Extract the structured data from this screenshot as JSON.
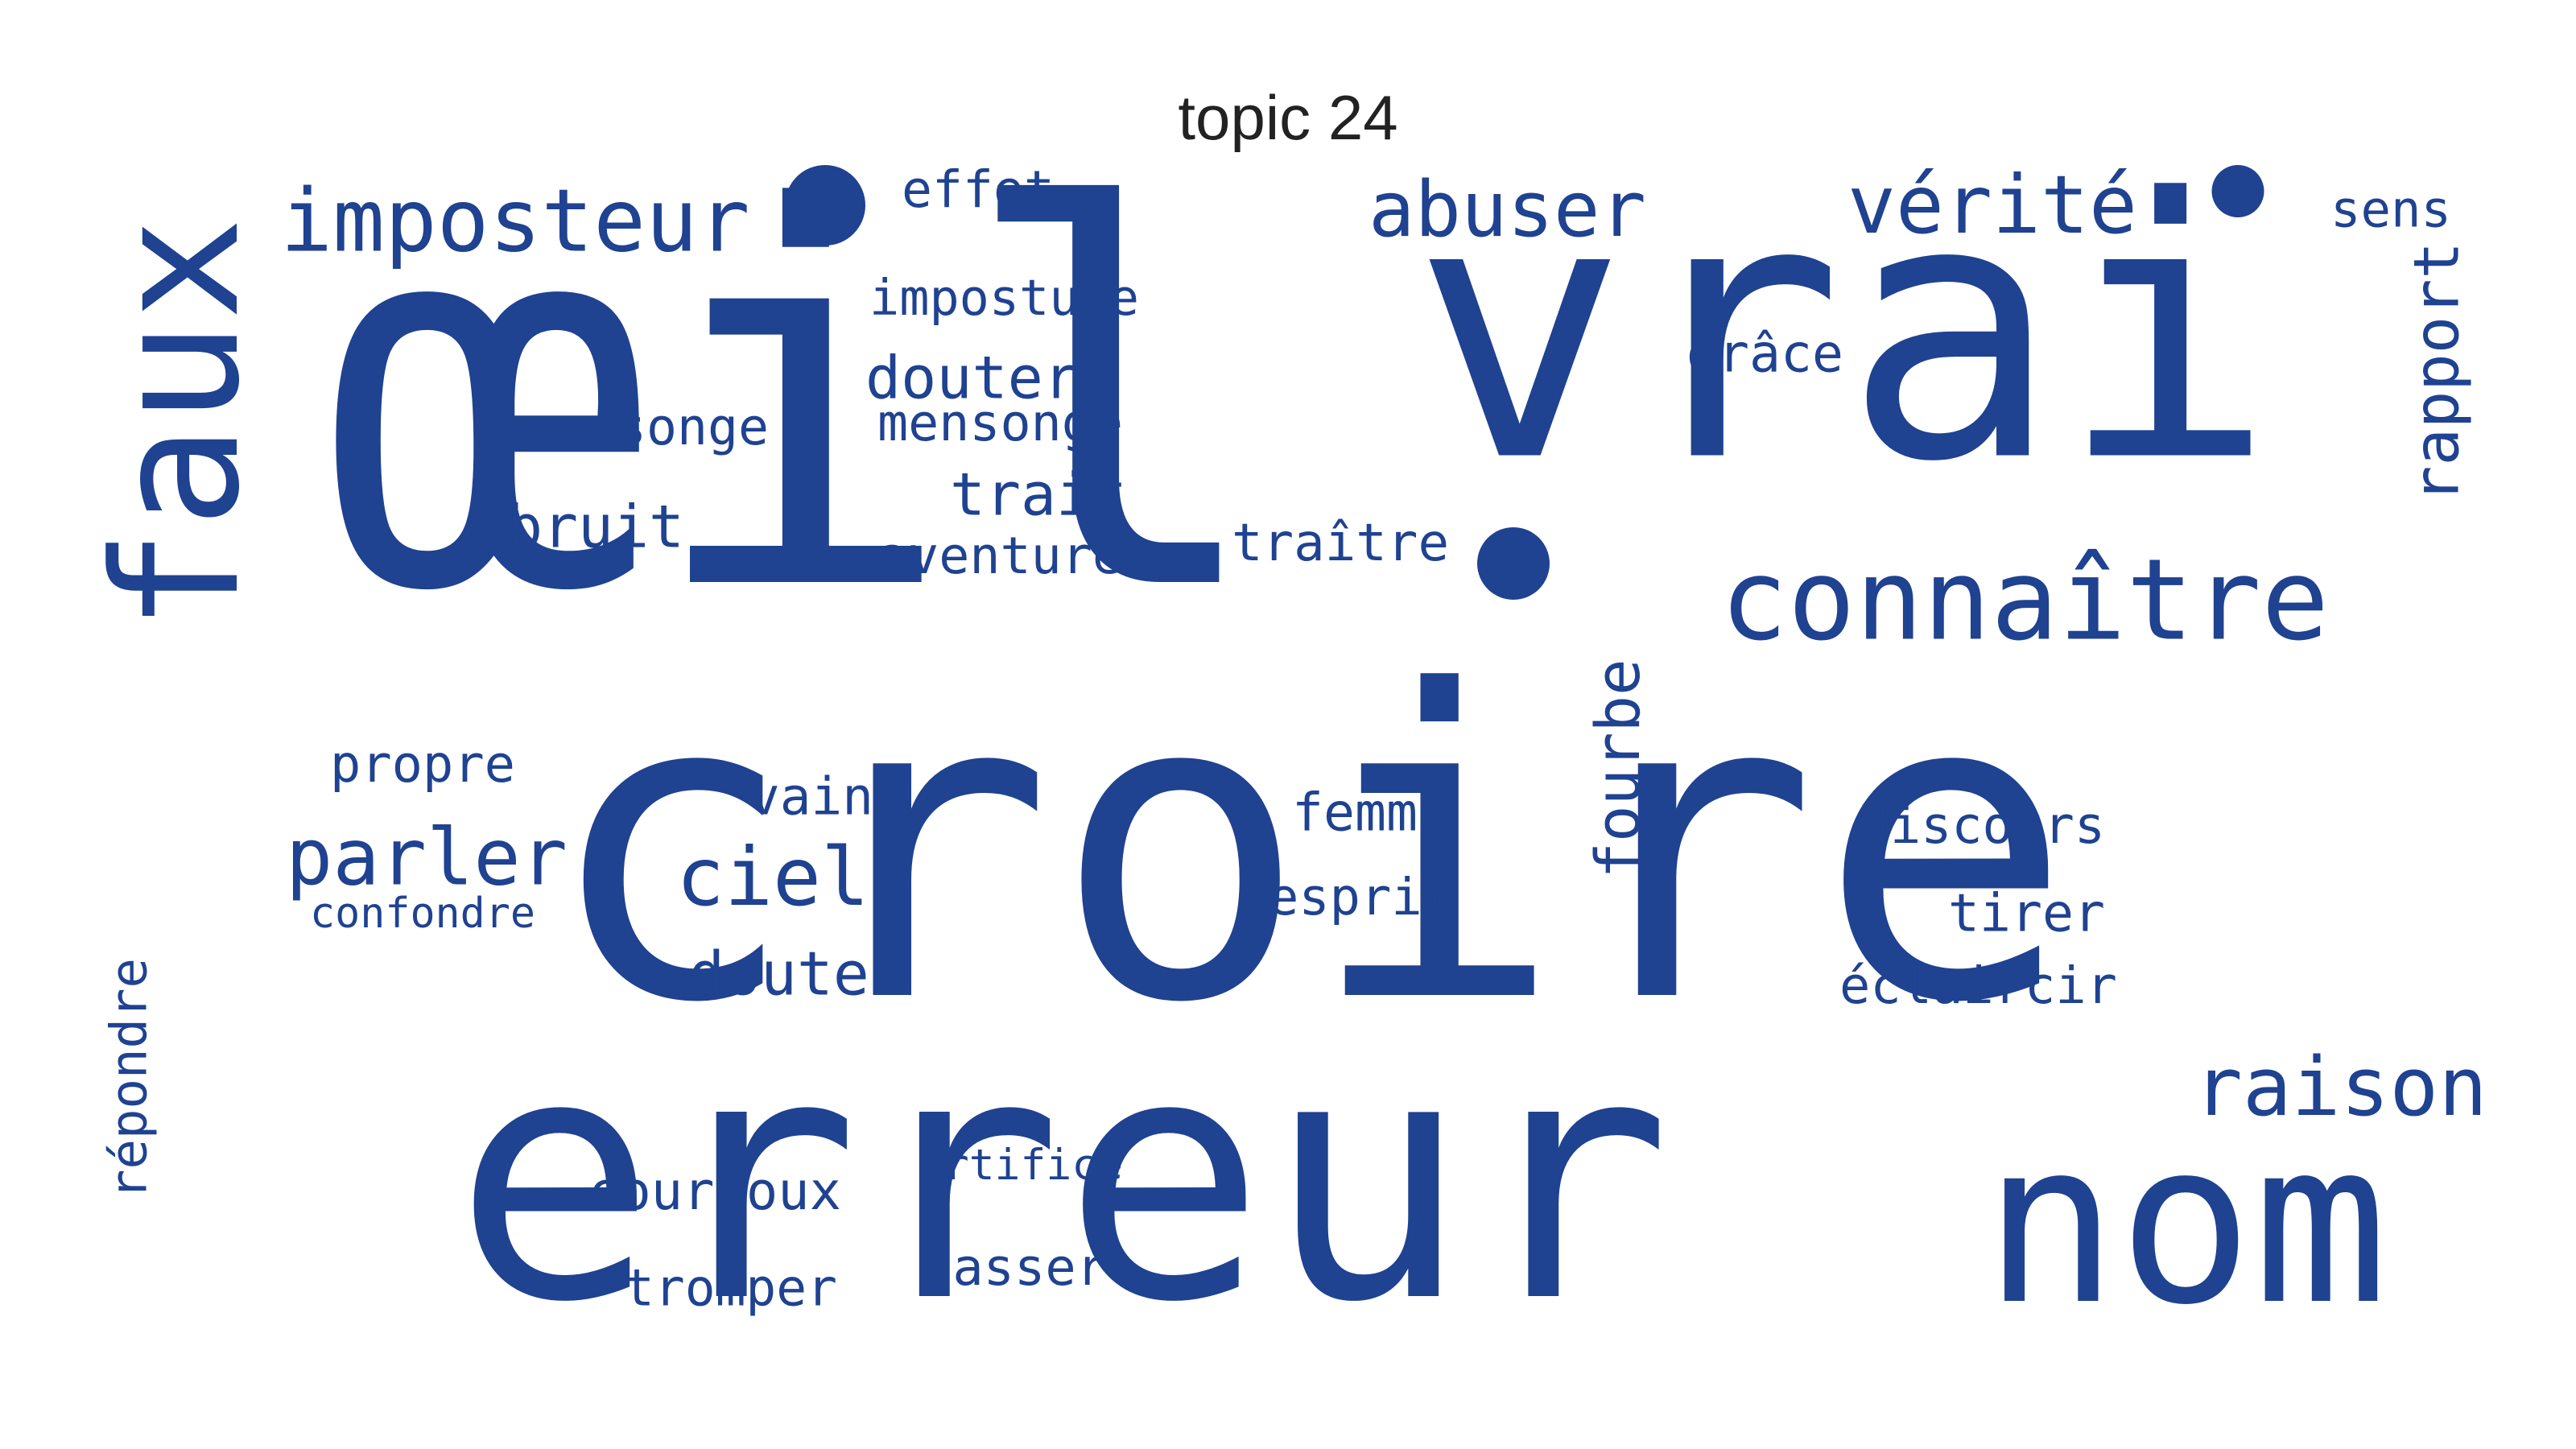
{
  "title": "topic 24",
  "color": "#1f4291",
  "words": [
    {
      "text": "croire"
    },
    {
      "text": "erreur"
    },
    {
      "text": "œil"
    },
    {
      "text": "vrai"
    },
    {
      "text": "nom"
    },
    {
      "text": "connaître"
    },
    {
      "text": "faux"
    },
    {
      "text": "imposteur"
    },
    {
      "text": "abuser"
    },
    {
      "text": "vérité"
    },
    {
      "text": "raison"
    },
    {
      "text": "parler"
    },
    {
      "text": "ciel"
    },
    {
      "text": "effet"
    },
    {
      "text": "sens"
    },
    {
      "text": "imposture"
    },
    {
      "text": "douter"
    },
    {
      "text": "mensonge"
    },
    {
      "text": "songe"
    },
    {
      "text": "grâce"
    },
    {
      "text": "trait"
    },
    {
      "text": "bruit"
    },
    {
      "text": "aventure"
    },
    {
      "text": "traître"
    },
    {
      "text": "rapport"
    },
    {
      "text": "fourbe"
    },
    {
      "text": "propre"
    },
    {
      "text": "vain"
    },
    {
      "text": "femme"
    },
    {
      "text": "discours"
    },
    {
      "text": "esprit"
    },
    {
      "text": "confondre"
    },
    {
      "text": "tirer"
    },
    {
      "text": "doute"
    },
    {
      "text": "éclaircir"
    },
    {
      "text": "répondre"
    },
    {
      "text": "artifice"
    },
    {
      "text": "courroux"
    },
    {
      "text": "passer"
    },
    {
      "text": "tromper"
    },
    {
      "text": "•"
    },
    {
      "text": "•"
    },
    {
      "text": "•"
    }
  ]
}
